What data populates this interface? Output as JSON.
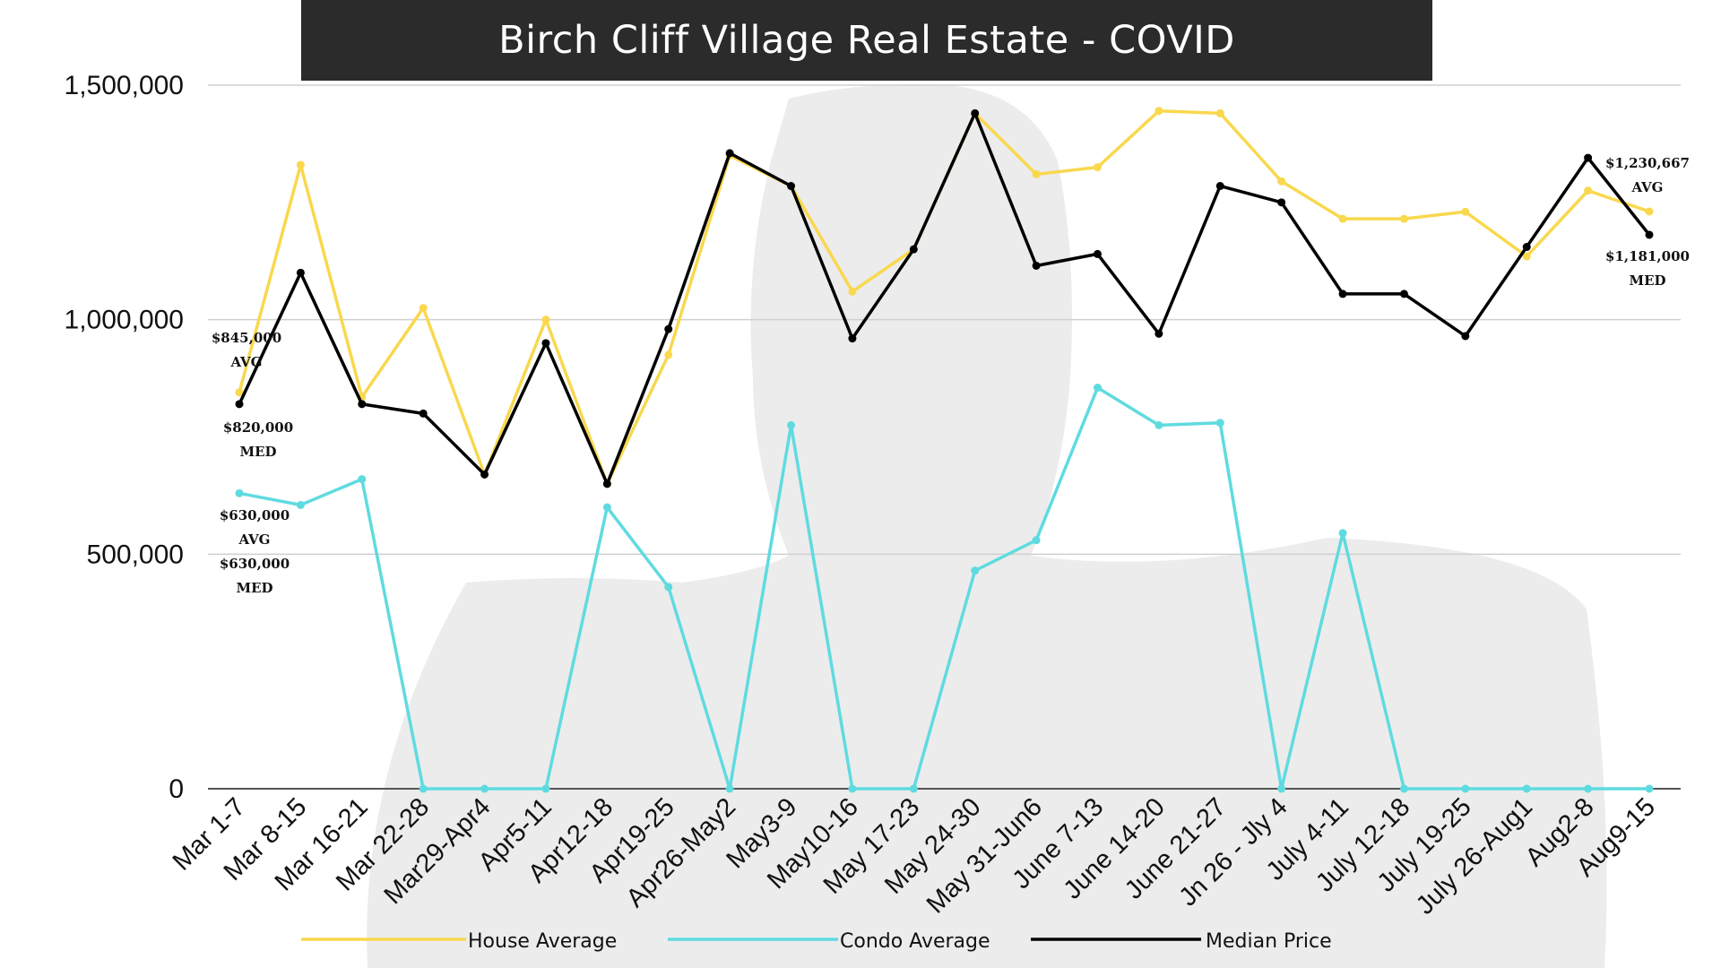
{
  "chart_data": {
    "type": "line",
    "title": "Birch Cliff Village Real Estate - COVID",
    "xlabel": "",
    "ylabel": "",
    "ylim": [
      0,
      1500000
    ],
    "yticks": [
      "0",
      "500,000",
      "1,000,000",
      "1,500,000"
    ],
    "grid": true,
    "legend_position": "bottom",
    "categories": [
      "Mar 1-7",
      "Mar 8-15",
      "Mar 16-21",
      "Mar 22-28",
      "Mar29-Apr4",
      "Apr5-11",
      "Apr12-18",
      "Apr19-25",
      "Apr26-May2",
      "May3-9",
      "May10-16",
      "May 17-23",
      "May 24-30",
      "May 31-Jun6",
      "June 7-13",
      "June 14-20",
      "June 21-27",
      "Jn 26 - Jly 4",
      "July 4-11",
      "July 12-18",
      "July 19-25",
      "July 26-Aug1",
      "Aug2-8",
      "Aug9-15"
    ],
    "series": [
      {
        "name": "House Average",
        "color": "#f9d84e",
        "values": [
          845000,
          1330000,
          835000,
          1025000,
          670000,
          1000000,
          650000,
          925000,
          1350000,
          1285000,
          1060000,
          1150000,
          1440000,
          1310000,
          1325000,
          1445000,
          1440000,
          1295000,
          1215000,
          1215000,
          1230000,
          1135000,
          1275000,
          1230667
        ]
      },
      {
        "name": "Condo Average",
        "color": "#5fdbe0",
        "values": [
          630000,
          605000,
          660000,
          0,
          0,
          0,
          600000,
          430000,
          0,
          775000,
          0,
          0,
          465000,
          530000,
          855000,
          775000,
          780000,
          0,
          545000,
          0,
          0,
          0,
          0,
          0
        ]
      },
      {
        "name": "Median Price",
        "color": "#000000",
        "values": [
          820000,
          1100000,
          820000,
          800000,
          670000,
          950000,
          650000,
          980000,
          1355000,
          1285000,
          960000,
          1150000,
          1440000,
          1115000,
          1140000,
          970000,
          1285000,
          1250000,
          1055000,
          1055000,
          965000,
          1155000,
          1345000,
          1181000
        ]
      }
    ],
    "annotations": [
      {
        "lines": [
          "$845,000",
          "AVG"
        ],
        "category": "Mar 1-7",
        "series": "House Average"
      },
      {
        "lines": [
          "$820,000",
          "MED"
        ],
        "category": "Mar 1-7",
        "series": "Median Price"
      },
      {
        "lines": [
          "$630,000",
          "AVG",
          "$630,000",
          "MED"
        ],
        "category": "Mar 1-7",
        "series": "Condo Average"
      },
      {
        "lines": [
          "$1,230,667",
          "AVG"
        ],
        "category": "Aug9-15",
        "series": "House Average"
      },
      {
        "lines": [
          "$1,181,000",
          "MED"
        ],
        "category": "Aug9-15",
        "series": "Median Price"
      }
    ]
  }
}
